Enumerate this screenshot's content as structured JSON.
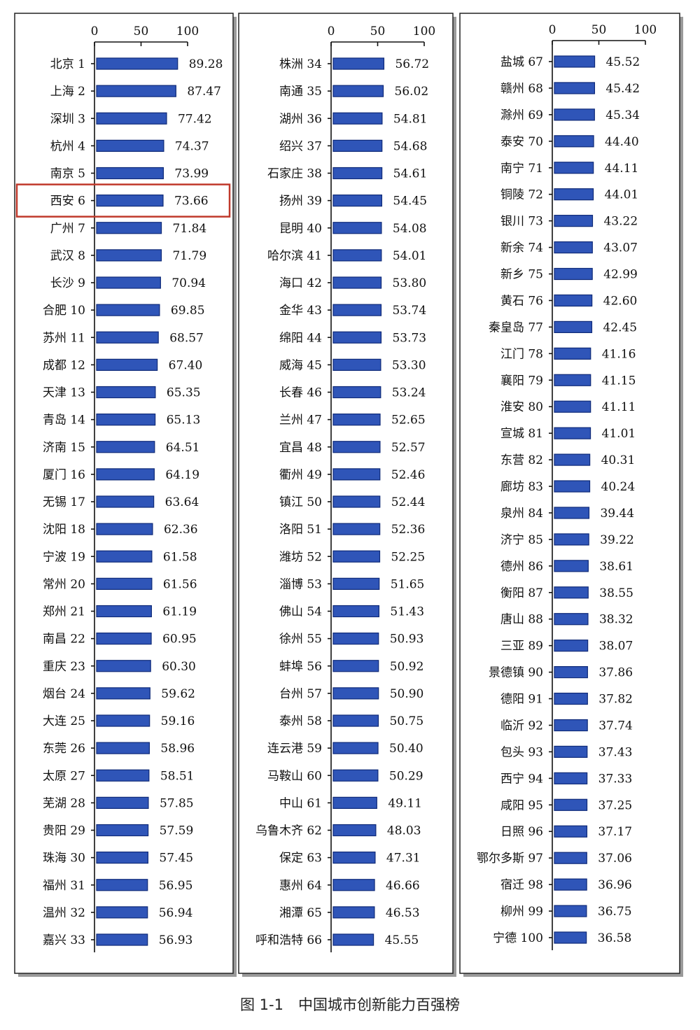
{
  "caption": "图 1-1　中国城市创新能力百强榜",
  "chart_data": {
    "type": "bar",
    "orientation": "horizontal",
    "xlim": [
      0,
      100
    ],
    "xticks": [
      0,
      50,
      100
    ],
    "highlight": "西安 6",
    "highlight_color": "#c0392b",
    "bar_color": "#2f55b8",
    "panels": [
      {
        "categories": [
          "北京 1",
          "上海 2",
          "深圳 3",
          "杭州 4",
          "南京 5",
          "西安 6",
          "广州 7",
          "武汉 8",
          "长沙 9",
          "合肥 10",
          "苏州 11",
          "成都 12",
          "天津 13",
          "青岛 14",
          "济南 15",
          "厦门 16",
          "无锡 17",
          "沈阳 18",
          "宁波 19",
          "常州 20",
          "郑州 21",
          "南昌 22",
          "重庆 23",
          "烟台 24",
          "大连 25",
          "东莞 26",
          "太原 27",
          "芜湖 28",
          "贵阳 29",
          "珠海 30",
          "福州 31",
          "温州 32",
          "嘉兴 33"
        ],
        "values": [
          89.28,
          87.47,
          77.42,
          74.37,
          73.99,
          73.66,
          71.84,
          71.79,
          70.94,
          69.85,
          68.57,
          67.4,
          65.35,
          65.13,
          64.51,
          64.19,
          63.64,
          62.36,
          61.58,
          61.56,
          61.19,
          60.95,
          60.3,
          59.62,
          59.16,
          58.96,
          58.51,
          57.85,
          57.59,
          57.45,
          56.95,
          56.94,
          56.93
        ],
        "value_labels": [
          "89.28",
          "87.47",
          "77.42",
          "74.37",
          "73.99",
          "73.66",
          "71.84",
          "71.79",
          "70.94",
          "69.85",
          "68.57",
          "67.40",
          "65.35",
          "65.13",
          "64.51",
          "64.19",
          "63.64",
          "62.36",
          "61.58",
          "61.56",
          "61.19",
          "60.95",
          "60.30",
          "59.62",
          "59.16",
          "58.96",
          "58.51",
          "57.85",
          "57.59",
          "57.45",
          "56.95",
          "56.94",
          "56.93"
        ]
      },
      {
        "categories": [
          "株洲 34",
          "南通 35",
          "湖州 36",
          "绍兴 37",
          "石家庄 38",
          "扬州 39",
          "昆明 40",
          "哈尔滨 41",
          "海口 42",
          "金华 43",
          "绵阳 44",
          "威海 45",
          "长春 46",
          "兰州 47",
          "宜昌 48",
          "衢州 49",
          "镇江 50",
          "洛阳 51",
          "潍坊 52",
          "淄博 53",
          "佛山 54",
          "徐州 55",
          "蚌埠 56",
          "台州 57",
          "泰州 58",
          "连云港 59",
          "马鞍山 60",
          "中山 61",
          "乌鲁木齐 62",
          "保定 63",
          "惠州 64",
          "湘潭 65",
          "呼和浩特 66"
        ],
        "values": [
          56.72,
          56.02,
          54.81,
          54.68,
          54.61,
          54.45,
          54.08,
          54.01,
          53.8,
          53.74,
          53.73,
          53.3,
          53.24,
          52.65,
          52.57,
          52.46,
          52.44,
          52.36,
          52.25,
          51.65,
          51.43,
          50.93,
          50.92,
          50.9,
          50.75,
          50.4,
          50.29,
          49.11,
          48.03,
          47.31,
          46.66,
          46.53,
          45.55
        ],
        "value_labels": [
          "56.72",
          "56.02",
          "54.81",
          "54.68",
          "54.61",
          "54.45",
          "54.08",
          "54.01",
          "53.80",
          "53.74",
          "53.73",
          "53.30",
          "53.24",
          "52.65",
          "52.57",
          "52.46",
          "52.44",
          "52.36",
          "52.25",
          "51.65",
          "51.43",
          "50.93",
          "50.92",
          "50.90",
          "50.75",
          "50.40",
          "50.29",
          "49.11",
          "48.03",
          "47.31",
          "46.66",
          "46.53",
          "45.55"
        ]
      },
      {
        "categories": [
          "盐城 67",
          "赣州 68",
          "滁州 69",
          "泰安 70",
          "南宁 71",
          "铜陵 72",
          "银川 73",
          "新余 74",
          "新乡 75",
          "黄石 76",
          "秦皇岛 77",
          "江门 78",
          "襄阳 79",
          "淮安 80",
          "宣城 81",
          "东营 82",
          "廊坊 83",
          "泉州 84",
          "济宁 85",
          "德州 86",
          "衡阳 87",
          "唐山 88",
          "三亚 89",
          "景德镇 90",
          "德阳 91",
          "临沂 92",
          "包头 93",
          "西宁 94",
          "咸阳 95",
          "日照 96",
          "鄂尔多斯 97",
          "宿迁 98",
          "柳州 99",
          "宁德 100"
        ],
        "values": [
          45.52,
          45.42,
          45.34,
          44.4,
          44.11,
          44.01,
          43.22,
          43.07,
          42.99,
          42.6,
          42.45,
          41.16,
          41.15,
          41.11,
          41.01,
          40.31,
          40.24,
          39.44,
          39.22,
          38.61,
          38.55,
          38.32,
          38.07,
          37.86,
          37.82,
          37.74,
          37.43,
          37.33,
          37.25,
          37.17,
          37.06,
          36.96,
          36.75,
          36.58
        ],
        "value_labels": [
          "45.52",
          "45.42",
          "45.34",
          "44.40",
          "44.11",
          "44.01",
          "43.22",
          "43.07",
          "42.99",
          "42.60",
          "42.45",
          "41.16",
          "41.15",
          "41.11",
          "41.01",
          "40.31",
          "40.24",
          "39.44",
          "39.22",
          "38.61",
          "38.55",
          "38.32",
          "38.07",
          "37.86",
          "37.82",
          "37.74",
          "37.43",
          "37.33",
          "37.25",
          "37.17",
          "37.06",
          "36.96",
          "36.75",
          "36.58"
        ]
      }
    ]
  }
}
